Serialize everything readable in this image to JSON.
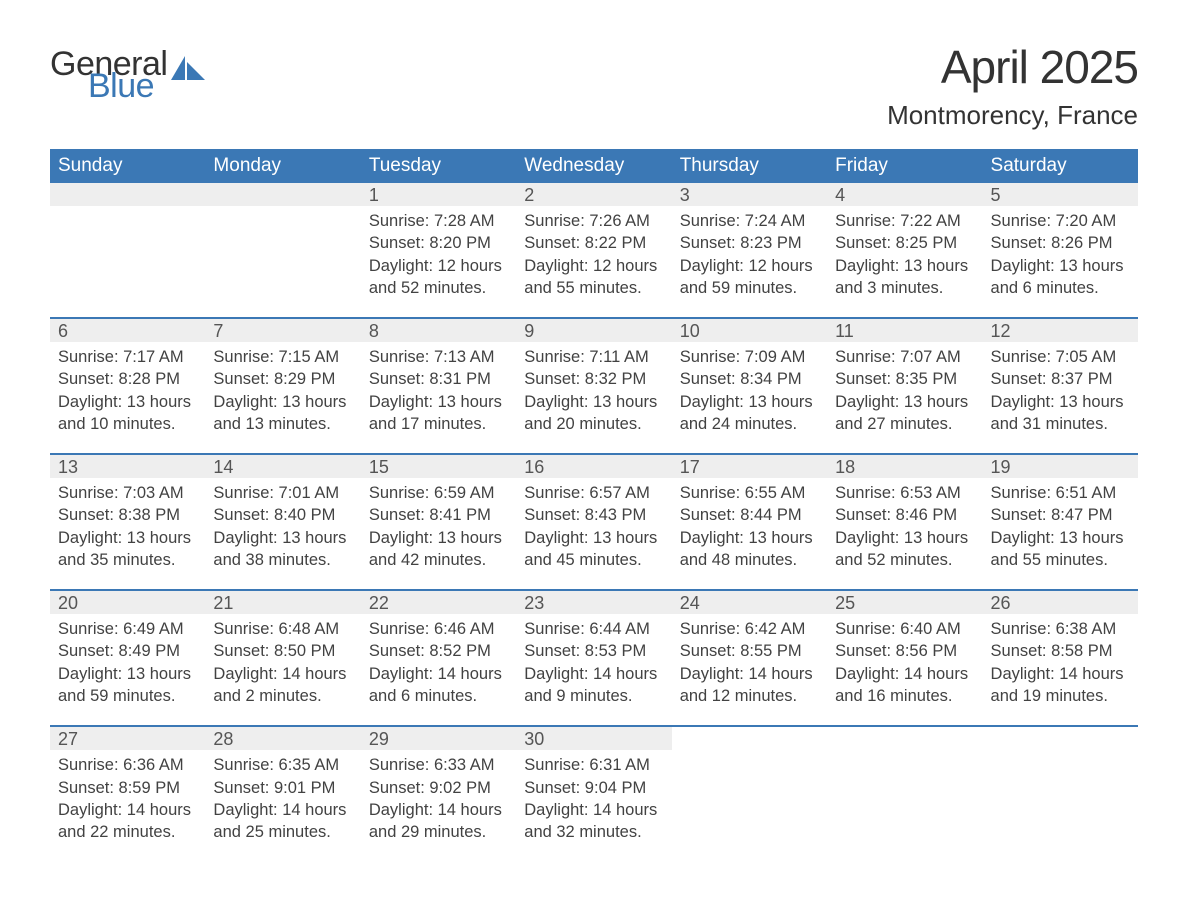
{
  "logo": {
    "text1": "General",
    "text2": "Blue",
    "sail_color": "#3b78b5"
  },
  "title": "April 2025",
  "location": "Montmorency, France",
  "header_bg": "#3b78b5",
  "header_fg": "#ffffff",
  "daynum_bg": "#eeeeee",
  "rule_color": "#3b78b5",
  "text_color": "#424242",
  "days_of_week": [
    "Sunday",
    "Monday",
    "Tuesday",
    "Wednesday",
    "Thursday",
    "Friday",
    "Saturday"
  ],
  "weeks": [
    [
      null,
      null,
      {
        "n": "1",
        "sunrise": "7:28 AM",
        "sunset": "8:20 PM",
        "dl1": "Daylight: 12 hours",
        "dl2": "and 52 minutes."
      },
      {
        "n": "2",
        "sunrise": "7:26 AM",
        "sunset": "8:22 PM",
        "dl1": "Daylight: 12 hours",
        "dl2": "and 55 minutes."
      },
      {
        "n": "3",
        "sunrise": "7:24 AM",
        "sunset": "8:23 PM",
        "dl1": "Daylight: 12 hours",
        "dl2": "and 59 minutes."
      },
      {
        "n": "4",
        "sunrise": "7:22 AM",
        "sunset": "8:25 PM",
        "dl1": "Daylight: 13 hours",
        "dl2": "and 3 minutes."
      },
      {
        "n": "5",
        "sunrise": "7:20 AM",
        "sunset": "8:26 PM",
        "dl1": "Daylight: 13 hours",
        "dl2": "and 6 minutes."
      }
    ],
    [
      {
        "n": "6",
        "sunrise": "7:17 AM",
        "sunset": "8:28 PM",
        "dl1": "Daylight: 13 hours",
        "dl2": "and 10 minutes."
      },
      {
        "n": "7",
        "sunrise": "7:15 AM",
        "sunset": "8:29 PM",
        "dl1": "Daylight: 13 hours",
        "dl2": "and 13 minutes."
      },
      {
        "n": "8",
        "sunrise": "7:13 AM",
        "sunset": "8:31 PM",
        "dl1": "Daylight: 13 hours",
        "dl2": "and 17 minutes."
      },
      {
        "n": "9",
        "sunrise": "7:11 AM",
        "sunset": "8:32 PM",
        "dl1": "Daylight: 13 hours",
        "dl2": "and 20 minutes."
      },
      {
        "n": "10",
        "sunrise": "7:09 AM",
        "sunset": "8:34 PM",
        "dl1": "Daylight: 13 hours",
        "dl2": "and 24 minutes."
      },
      {
        "n": "11",
        "sunrise": "7:07 AM",
        "sunset": "8:35 PM",
        "dl1": "Daylight: 13 hours",
        "dl2": "and 27 minutes."
      },
      {
        "n": "12",
        "sunrise": "7:05 AM",
        "sunset": "8:37 PM",
        "dl1": "Daylight: 13 hours",
        "dl2": "and 31 minutes."
      }
    ],
    [
      {
        "n": "13",
        "sunrise": "7:03 AM",
        "sunset": "8:38 PM",
        "dl1": "Daylight: 13 hours",
        "dl2": "and 35 minutes."
      },
      {
        "n": "14",
        "sunrise": "7:01 AM",
        "sunset": "8:40 PM",
        "dl1": "Daylight: 13 hours",
        "dl2": "and 38 minutes."
      },
      {
        "n": "15",
        "sunrise": "6:59 AM",
        "sunset": "8:41 PM",
        "dl1": "Daylight: 13 hours",
        "dl2": "and 42 minutes."
      },
      {
        "n": "16",
        "sunrise": "6:57 AM",
        "sunset": "8:43 PM",
        "dl1": "Daylight: 13 hours",
        "dl2": "and 45 minutes."
      },
      {
        "n": "17",
        "sunrise": "6:55 AM",
        "sunset": "8:44 PM",
        "dl1": "Daylight: 13 hours",
        "dl2": "and 48 minutes."
      },
      {
        "n": "18",
        "sunrise": "6:53 AM",
        "sunset": "8:46 PM",
        "dl1": "Daylight: 13 hours",
        "dl2": "and 52 minutes."
      },
      {
        "n": "19",
        "sunrise": "6:51 AM",
        "sunset": "8:47 PM",
        "dl1": "Daylight: 13 hours",
        "dl2": "and 55 minutes."
      }
    ],
    [
      {
        "n": "20",
        "sunrise": "6:49 AM",
        "sunset": "8:49 PM",
        "dl1": "Daylight: 13 hours",
        "dl2": "and 59 minutes."
      },
      {
        "n": "21",
        "sunrise": "6:48 AM",
        "sunset": "8:50 PM",
        "dl1": "Daylight: 14 hours",
        "dl2": "and 2 minutes."
      },
      {
        "n": "22",
        "sunrise": "6:46 AM",
        "sunset": "8:52 PM",
        "dl1": "Daylight: 14 hours",
        "dl2": "and 6 minutes."
      },
      {
        "n": "23",
        "sunrise": "6:44 AM",
        "sunset": "8:53 PM",
        "dl1": "Daylight: 14 hours",
        "dl2": "and 9 minutes."
      },
      {
        "n": "24",
        "sunrise": "6:42 AM",
        "sunset": "8:55 PM",
        "dl1": "Daylight: 14 hours",
        "dl2": "and 12 minutes."
      },
      {
        "n": "25",
        "sunrise": "6:40 AM",
        "sunset": "8:56 PM",
        "dl1": "Daylight: 14 hours",
        "dl2": "and 16 minutes."
      },
      {
        "n": "26",
        "sunrise": "6:38 AM",
        "sunset": "8:58 PM",
        "dl1": "Daylight: 14 hours",
        "dl2": "and 19 minutes."
      }
    ],
    [
      {
        "n": "27",
        "sunrise": "6:36 AM",
        "sunset": "8:59 PM",
        "dl1": "Daylight: 14 hours",
        "dl2": "and 22 minutes."
      },
      {
        "n": "28",
        "sunrise": "6:35 AM",
        "sunset": "9:01 PM",
        "dl1": "Daylight: 14 hours",
        "dl2": "and 25 minutes."
      },
      {
        "n": "29",
        "sunrise": "6:33 AM",
        "sunset": "9:02 PM",
        "dl1": "Daylight: 14 hours",
        "dl2": "and 29 minutes."
      },
      {
        "n": "30",
        "sunrise": "6:31 AM",
        "sunset": "9:04 PM",
        "dl1": "Daylight: 14 hours",
        "dl2": "and 32 minutes."
      },
      null,
      null,
      null
    ]
  ],
  "labels": {
    "sunrise": "Sunrise: ",
    "sunset": "Sunset: "
  }
}
